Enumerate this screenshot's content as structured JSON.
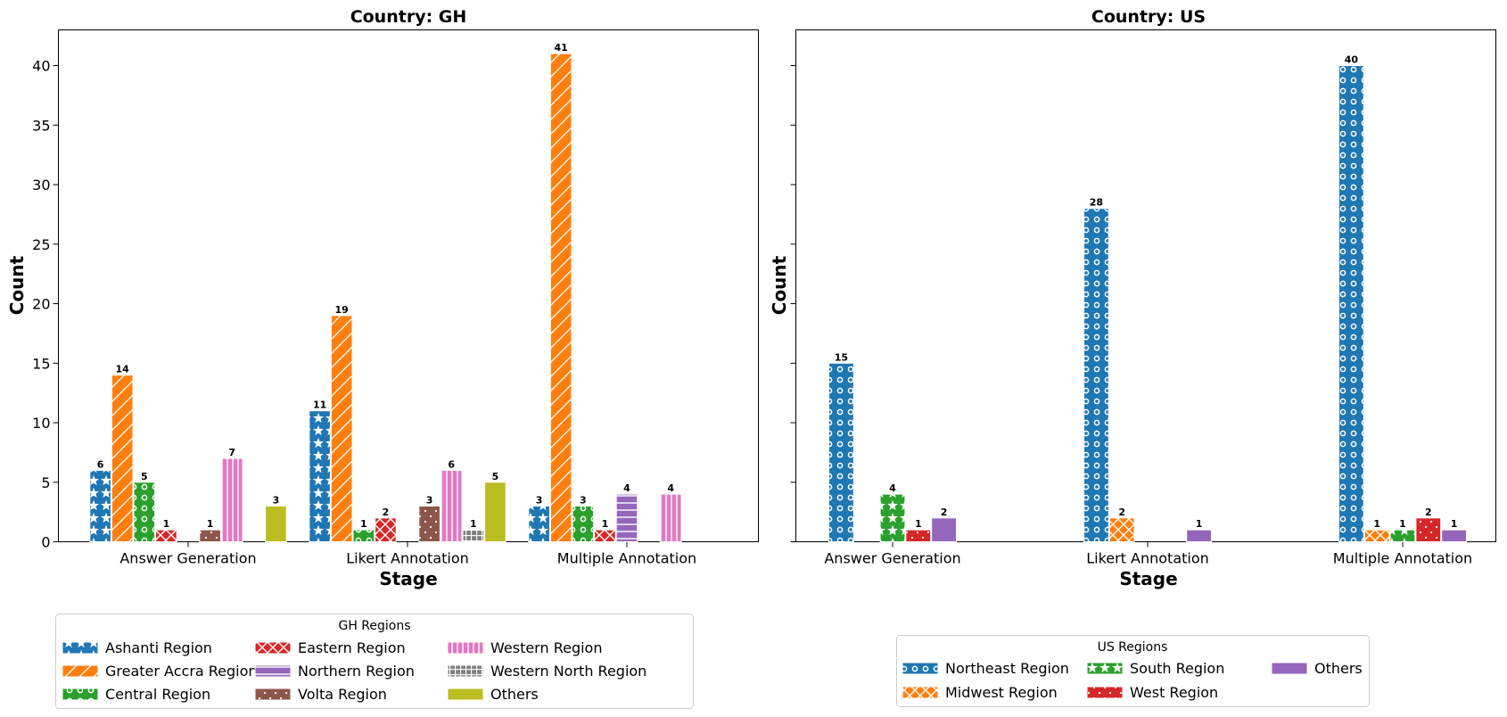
{
  "charts": [
    {
      "title": "Country: GH",
      "xlabel": "Stage",
      "ylabel": "Count",
      "legend_title": "GH Regions"
    },
    {
      "title": "Country: US",
      "xlabel": "Stage",
      "ylabel": "Count",
      "legend_title": "US Regions"
    }
  ],
  "chart_data": [
    {
      "type": "bar",
      "title": "Country: GH",
      "xlabel": "Stage",
      "ylabel": "Count",
      "ylim": [
        0,
        43
      ],
      "yticks": [
        0,
        5,
        10,
        15,
        20,
        25,
        30,
        35,
        40
      ],
      "categories": [
        "Answer Generation",
        "Likert Annotation",
        "Multiple Annotation"
      ],
      "legend_title": "GH Regions",
      "legend_columns": 3,
      "legend_placement": "below-left",
      "series": [
        {
          "name": "Ashanti Region",
          "values": [
            6,
            11,
            3
          ],
          "color": "#1f77b4",
          "pattern": "star"
        },
        {
          "name": "Greater Accra Region",
          "values": [
            14,
            19,
            41
          ],
          "color": "#ff7f0e",
          "pattern": "diag"
        },
        {
          "name": "Central Region",
          "values": [
            5,
            1,
            3
          ],
          "color": "#2ca02c",
          "pattern": "circle"
        },
        {
          "name": "Eastern Region",
          "values": [
            1,
            2,
            1
          ],
          "color": "#d62728",
          "pattern": "cross"
        },
        {
          "name": "Northern Region",
          "values": [
            0,
            0,
            4
          ],
          "color": "#9467bd",
          "pattern": "hline"
        },
        {
          "name": "Volta Region",
          "values": [
            1,
            3,
            0
          ],
          "color": "#8c564b",
          "pattern": "dots"
        },
        {
          "name": "Western Region",
          "values": [
            7,
            6,
            4
          ],
          "color": "#e377c2",
          "pattern": "vline"
        },
        {
          "name": "Western North Region",
          "values": [
            0,
            1,
            0
          ],
          "color": "#7f7f7f",
          "pattern": "grid"
        },
        {
          "name": "Others",
          "values": [
            3,
            5,
            0
          ],
          "color": "#bcbd22",
          "pattern": "none"
        }
      ]
    },
    {
      "type": "bar",
      "title": "Country: US",
      "xlabel": "Stage",
      "ylabel": "Count",
      "ylim": [
        0,
        43
      ],
      "yticks": [
        0,
        5,
        10,
        15,
        20,
        25,
        30,
        35,
        40
      ],
      "categories": [
        "Answer Generation",
        "Likert Annotation",
        "Multiple Annotation"
      ],
      "legend_title": "US Regions",
      "legend_columns": 3,
      "legend_placement": "below-center",
      "series": [
        {
          "name": "Northeast Region",
          "values": [
            15,
            28,
            40
          ],
          "color": "#1f77b4",
          "pattern": "circle"
        },
        {
          "name": "Midwest Region",
          "values": [
            0,
            2,
            1
          ],
          "color": "#ff7f0e",
          "pattern": "cross"
        },
        {
          "name": "South Region",
          "values": [
            4,
            0,
            1
          ],
          "color": "#2ca02c",
          "pattern": "star"
        },
        {
          "name": "West Region",
          "values": [
            1,
            0,
            2
          ],
          "color": "#d62728",
          "pattern": "dots"
        },
        {
          "name": "Others",
          "values": [
            2,
            1,
            1
          ],
          "color": "#9467bd",
          "pattern": "none"
        }
      ]
    }
  ]
}
